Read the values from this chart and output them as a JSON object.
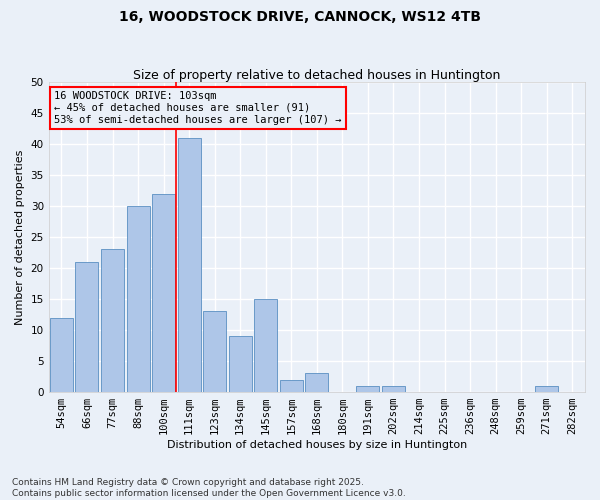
{
  "title": "16, WOODSTOCK DRIVE, CANNOCK, WS12 4TB",
  "subtitle": "Size of property relative to detached houses in Huntington",
  "xlabel": "Distribution of detached houses by size in Huntington",
  "ylabel": "Number of detached properties",
  "categories": [
    "54sqm",
    "66sqm",
    "77sqm",
    "88sqm",
    "100sqm",
    "111sqm",
    "123sqm",
    "134sqm",
    "145sqm",
    "157sqm",
    "168sqm",
    "180sqm",
    "191sqm",
    "202sqm",
    "214sqm",
    "225sqm",
    "236sqm",
    "248sqm",
    "259sqm",
    "271sqm",
    "282sqm"
  ],
  "values": [
    12,
    21,
    23,
    30,
    32,
    41,
    13,
    9,
    15,
    2,
    3,
    0,
    1,
    1,
    0,
    0,
    0,
    0,
    0,
    1,
    0
  ],
  "bar_color": "#aec6e8",
  "bar_edge_color": "#5a8fc2",
  "red_line_index": 4.5,
  "ylim": [
    0,
    50
  ],
  "yticks": [
    0,
    5,
    10,
    15,
    20,
    25,
    30,
    35,
    40,
    45,
    50
  ],
  "annotation_line1": "16 WOODSTOCK DRIVE: 103sqm",
  "annotation_line2": "← 45% of detached houses are smaller (91)",
  "annotation_line3": "53% of semi-detached houses are larger (107) →",
  "footer": "Contains HM Land Registry data © Crown copyright and database right 2025.\nContains public sector information licensed under the Open Government Licence v3.0.",
  "bg_color": "#eaf0f8",
  "grid_color": "#ffffff",
  "title_fontsize": 10,
  "subtitle_fontsize": 9,
  "axis_label_fontsize": 8,
  "tick_fontsize": 7.5,
  "annotation_fontsize": 7.5,
  "footer_fontsize": 6.5
}
